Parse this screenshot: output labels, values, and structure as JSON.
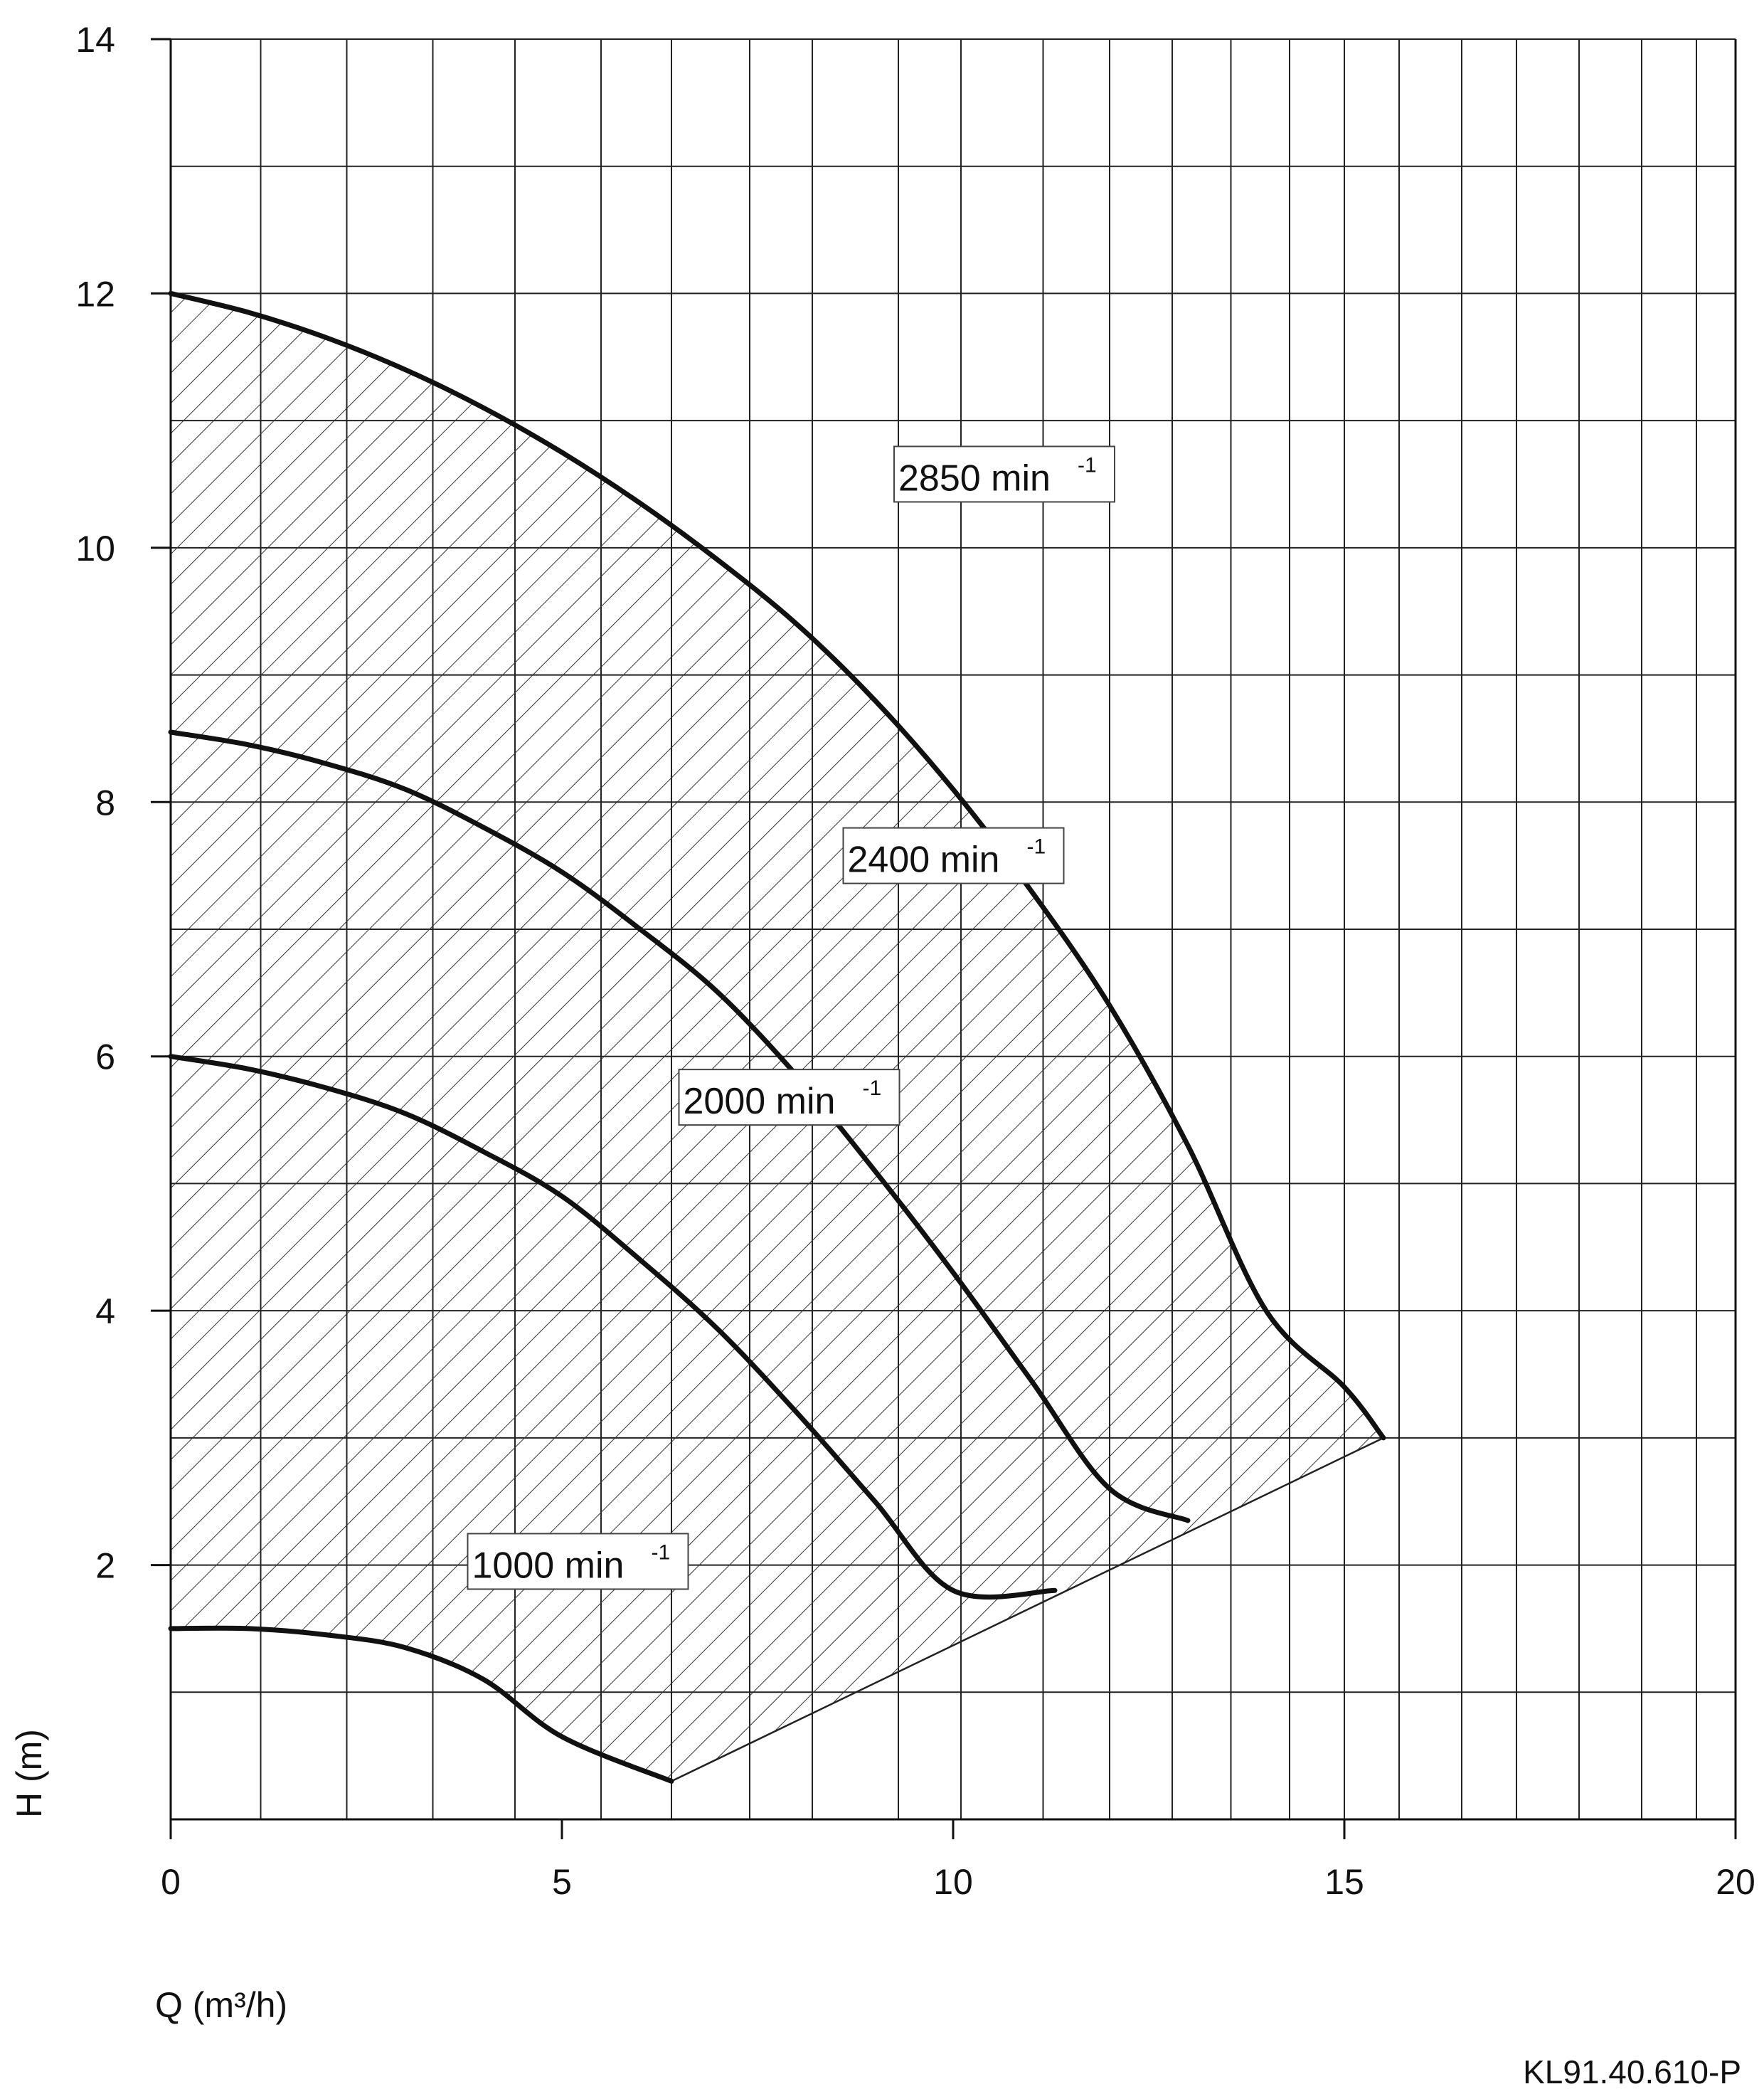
{
  "chart_data": {
    "type": "line",
    "xlabel": "Q (m³/h)",
    "ylabel": "H (m)",
    "xlim": [
      0,
      20
    ],
    "ylim": [
      0,
      14
    ],
    "x_ticks": [
      "0",
      "5",
      "10",
      "15",
      "20"
    ],
    "y_ticks": [
      "2",
      "4",
      "6",
      "8",
      "10",
      "12",
      "14"
    ],
    "x_grid": [
      0,
      1.15,
      2.25,
      3.35,
      4.4,
      5.5,
      6.4,
      7.4,
      8.2,
      9.3,
      10.1,
      11.15,
      12.0,
      12.8,
      13.55,
      14.3,
      15.0,
      15.7,
      16.5,
      17.2,
      18.0,
      18.8,
      19.5,
      20.0
    ],
    "y_grid": [
      0,
      1,
      2,
      3,
      4,
      5,
      6,
      7,
      8,
      9,
      10,
      11,
      12,
      13,
      14
    ],
    "grid": true,
    "series": [
      {
        "label_main": "2850 min",
        "label_sup": "-1",
        "x": [
          0,
          1,
          2,
          3,
          4,
          5,
          6,
          7,
          8,
          9,
          10,
          11,
          12,
          13,
          14,
          15,
          15.5
        ],
        "y": [
          12.0,
          11.85,
          11.65,
          11.4,
          11.1,
          10.75,
          10.35,
          9.9,
          9.4,
          8.8,
          8.1,
          7.3,
          6.4,
          5.3,
          4.0,
          3.4,
          3.0
        ]
      },
      {
        "label_main": "2400 min",
        "label_sup": "-1",
        "x": [
          0,
          1,
          2,
          3,
          4,
          5,
          6,
          7,
          8,
          9,
          10,
          11,
          12,
          13
        ],
        "y": [
          8.55,
          8.45,
          8.3,
          8.1,
          7.8,
          7.45,
          7.0,
          6.5,
          5.85,
          5.1,
          4.3,
          3.45,
          2.6,
          2.35
        ]
      },
      {
        "label_main": "2000 min",
        "label_sup": "-1",
        "x": [
          0,
          1,
          2,
          3,
          4,
          5,
          6,
          7,
          8,
          9,
          10,
          11.3
        ],
        "y": [
          6.0,
          5.9,
          5.75,
          5.55,
          5.25,
          4.9,
          4.4,
          3.85,
          3.2,
          2.5,
          1.8,
          1.8
        ]
      },
      {
        "label_main": "1000 min",
        "label_sup": "-1",
        "x": [
          0,
          1,
          2,
          3,
          4,
          5,
          6.4
        ],
        "y": [
          1.5,
          1.5,
          1.45,
          1.35,
          1.1,
          0.65,
          0.3
        ]
      }
    ],
    "operating_area_lower_boundary": {
      "x": [
        6.4,
        15.5
      ],
      "y": [
        0.3,
        3.0
      ]
    }
  },
  "document_code": "KL91.40.610-P"
}
